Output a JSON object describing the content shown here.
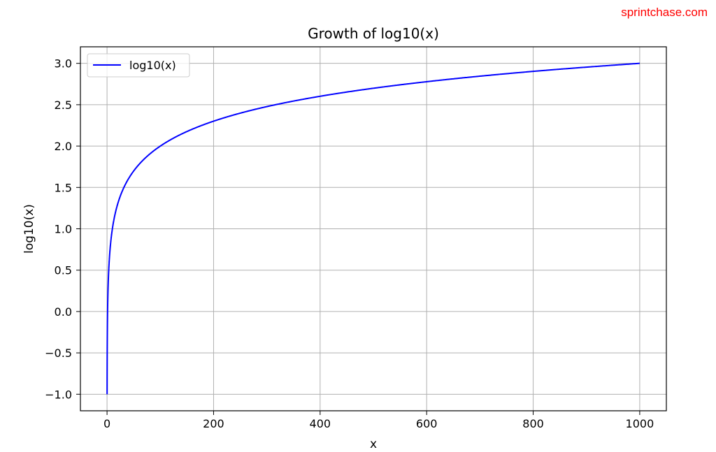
{
  "watermark": "sprintchase.com",
  "chart_data": {
    "type": "line",
    "title": "Growth of log10(x)",
    "xlabel": "x",
    "ylabel": "log10(x)",
    "xlim": [
      -50,
      1050
    ],
    "ylim": [
      -1.2,
      3.2
    ],
    "xticks": [
      0,
      200,
      400,
      600,
      800,
      1000
    ],
    "xtick_labels": [
      "0",
      "200",
      "400",
      "600",
      "800",
      "1000"
    ],
    "yticks": [
      -1.0,
      -0.5,
      0.0,
      0.5,
      1.0,
      1.5,
      2.0,
      2.5,
      3.0
    ],
    "ytick_labels": [
      "−1.0",
      "−0.5",
      "0.0",
      "0.5",
      "1.0",
      "1.5",
      "2.0",
      "2.5",
      "3.0"
    ],
    "grid": true,
    "legend_position": "upper-left",
    "series": [
      {
        "name": "log10(x)",
        "color": "#0000ff",
        "function": "log10",
        "x_range": [
          0.1,
          1000
        ]
      }
    ]
  }
}
